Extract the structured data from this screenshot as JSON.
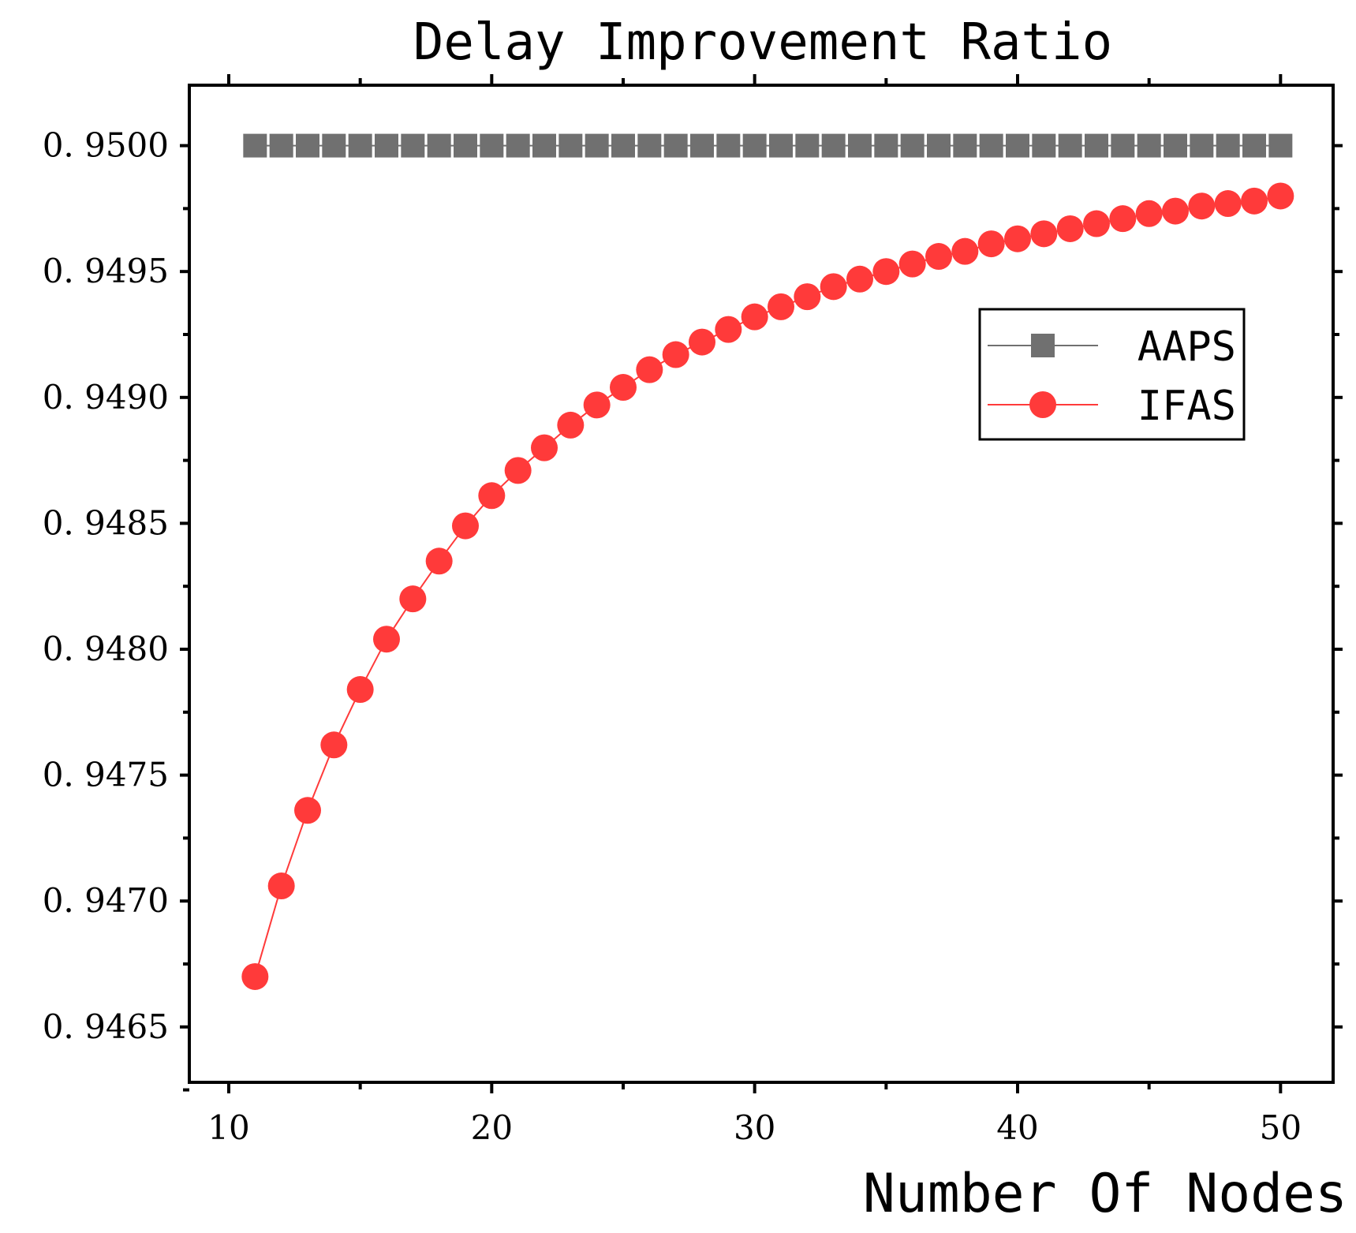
{
  "chart_data": {
    "type": "line",
    "title": "Delay Improvement Ratio",
    "xlabel": "Number Of Nodes",
    "ylabel": "",
    "xlim": [
      8.5,
      52
    ],
    "ylim": [
      0.94628,
      0.95024
    ],
    "xticks": [
      10,
      20,
      30,
      40,
      50
    ],
    "xtick_labels": [
      "10",
      "20",
      "30",
      "40",
      "50"
    ],
    "yticks": [
      0.9465,
      0.947,
      0.9475,
      0.948,
      0.9485,
      0.949,
      0.9495,
      0.95
    ],
    "ytick_labels": [
      "0. 9465",
      "0. 9470",
      "0. 9475",
      "0. 9480",
      "0. 9485",
      "0. 9490",
      "0. 9495",
      "0. 9500"
    ],
    "legend_position": "upper-right",
    "x": [
      11,
      12,
      13,
      14,
      15,
      16,
      17,
      18,
      19,
      20,
      21,
      22,
      23,
      24,
      25,
      26,
      27,
      28,
      29,
      30,
      31,
      32,
      33,
      34,
      35,
      36,
      37,
      38,
      39,
      40,
      41,
      42,
      43,
      44,
      45,
      46,
      47,
      48,
      49,
      50
    ],
    "series": [
      {
        "name": "AAPS",
        "color": "#707070",
        "marker": "square",
        "values": [
          0.95,
          0.95,
          0.95,
          0.95,
          0.95,
          0.95,
          0.95,
          0.95,
          0.95,
          0.95,
          0.95,
          0.95,
          0.95,
          0.95,
          0.95,
          0.95,
          0.95,
          0.95,
          0.95,
          0.95,
          0.95,
          0.95,
          0.95,
          0.95,
          0.95,
          0.95,
          0.95,
          0.95,
          0.95,
          0.95,
          0.95,
          0.95,
          0.95,
          0.95,
          0.95,
          0.95,
          0.95,
          0.95,
          0.95,
          0.95
        ]
      },
      {
        "name": "IFAS",
        "color": "#ff3a3a",
        "marker": "circle",
        "values": [
          0.9467,
          0.94706,
          0.94736,
          0.94762,
          0.94784,
          0.94804,
          0.9482,
          0.94835,
          0.94849,
          0.94861,
          0.94871,
          0.9488,
          0.94889,
          0.94897,
          0.94904,
          0.94911,
          0.94917,
          0.94922,
          0.94927,
          0.94932,
          0.94936,
          0.9494,
          0.94944,
          0.94947,
          0.9495,
          0.94953,
          0.94956,
          0.94958,
          0.94961,
          0.94963,
          0.94965,
          0.94967,
          0.94969,
          0.94971,
          0.94973,
          0.94974,
          0.94976,
          0.94977,
          0.94978,
          0.9498
        ]
      }
    ]
  }
}
